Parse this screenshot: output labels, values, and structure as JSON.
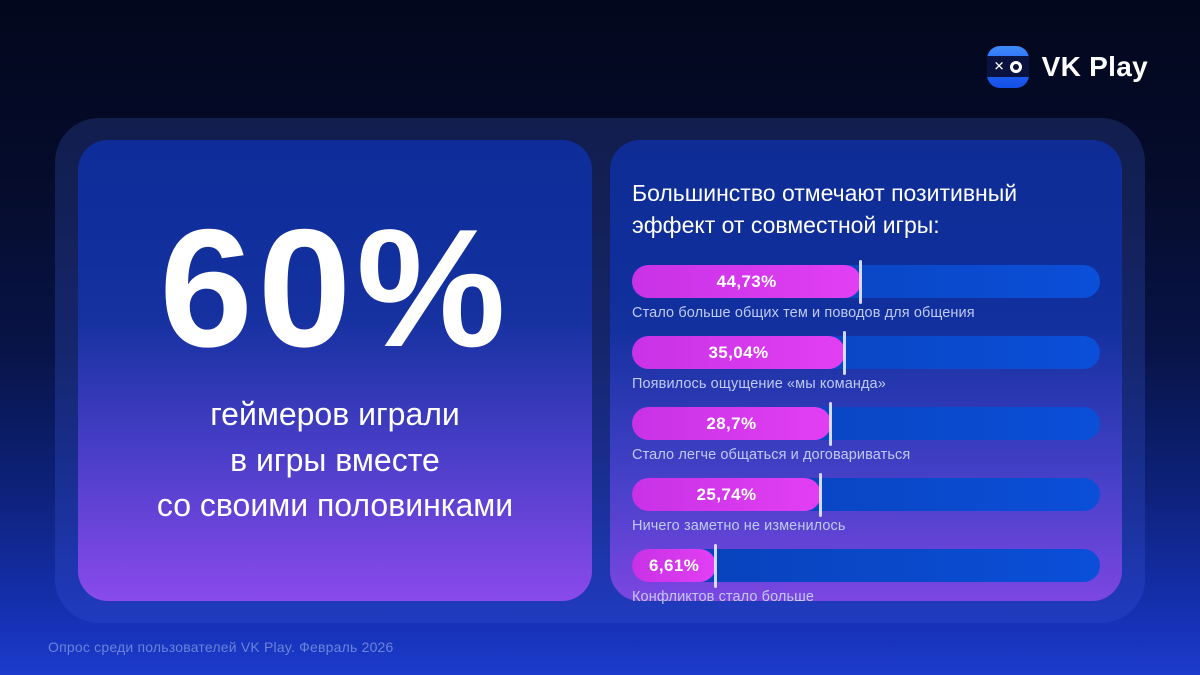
{
  "logo": {
    "brand": "VK Play",
    "icon": "vk-play-xo-app-icon",
    "icon_color": "#1f63f2"
  },
  "left_card": {
    "stat_value": "60%",
    "lines": [
      "геймеров играли",
      "в игры вместе",
      "со своими половинками"
    ]
  },
  "right_card": {
    "title_lines": [
      "Большинство отмечают позитивный",
      "эффект от совместной игры:"
    ]
  },
  "chart_data": {
    "type": "bar",
    "orientation": "horizontal",
    "unit": "%",
    "title": "Большинство отмечают позитивный эффект от совместной игры:",
    "items": [
      {
        "label": "Стало больше общих тем и поводов для общения",
        "value": 44.73,
        "value_label": "44,73%",
        "width_pct": 49
      },
      {
        "label": "Появилось ощущение «мы команда»",
        "value": 35.04,
        "value_label": "35,04%",
        "width_pct": 45.5
      },
      {
        "label": "Стало легче общаться и договариваться",
        "value": 28.7,
        "value_label": "28,7%",
        "width_pct": 42.5
      },
      {
        "label": "Ничего заметно не изменилось",
        "value": 25.74,
        "value_label": "25,74%",
        "width_pct": 40.4
      },
      {
        "label": "Конфликтов стало больше",
        "value": 6.61,
        "value_label": "6,61%",
        "width_pct": 18
      }
    ],
    "bar_fill_color": "#d93af0",
    "bar_track_color": "#0a46c8",
    "legend": "none",
    "grid": "off"
  },
  "footer": {
    "text": "Опрос среди пользователей VK Play. Февраль 2026"
  },
  "colors": {
    "background_top": "#03071d",
    "background_bottom": "#1d3ccd",
    "card_top": "#0e2d99",
    "card_bottom_purple": "#8a4aec",
    "accent_magenta": "#d93af0",
    "accent_blue": "#0b4ed8"
  }
}
